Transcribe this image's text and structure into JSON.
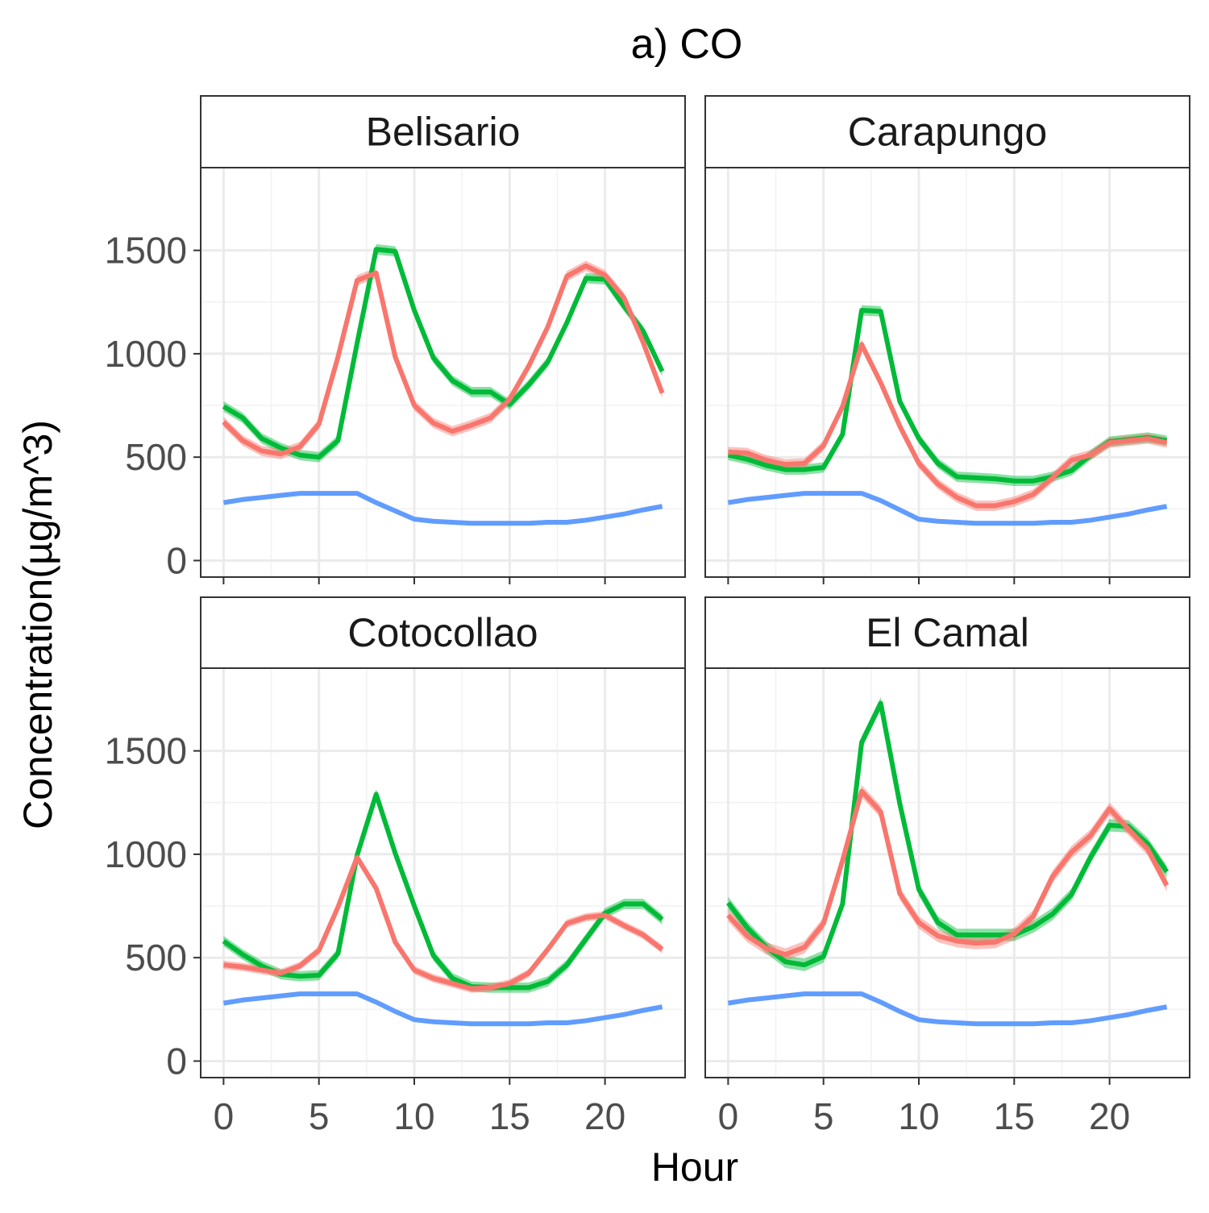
{
  "chart_data": {
    "type": "line",
    "title": "a) CO",
    "xlabel": "Hour",
    "ylabel": "Concentration(µg/m^3)",
    "xlim": [
      -1.2,
      24.2
    ],
    "ylim": [
      -80,
      1900
    ],
    "x_ticks": [
      0,
      5,
      10,
      15,
      20
    ],
    "y_ticks": [
      0,
      500,
      1000,
      1500
    ],
    "grid": true,
    "legend": "none",
    "colors": {
      "red": "#F8766D",
      "green": "#00BA38",
      "blue": "#619CFF"
    },
    "panels": [
      {
        "title": "Belisario",
        "series": [
          {
            "color": "#00BA38",
            "band": 25,
            "x": [
              0,
              1,
              2,
              3,
              4,
              5,
              6,
              7,
              8,
              9,
              10,
              11,
              12,
              13,
              14,
              15,
              16,
              17,
              18,
              19,
              20,
              21,
              22,
              23
            ],
            "y": [
              745,
              690,
              590,
              545,
              510,
              500,
              580,
              1050,
              1505,
              1495,
              1210,
              980,
              870,
              815,
              815,
              755,
              850,
              960,
              1150,
              1365,
              1360,
              1230,
              1110,
              915
            ]
          },
          {
            "color": "#F8766D",
            "band": 25,
            "x": [
              0,
              1,
              2,
              3,
              4,
              5,
              6,
              7,
              8,
              9,
              10,
              11,
              12,
              13,
              14,
              15,
              16,
              17,
              18,
              19,
              20,
              21,
              22,
              23
            ],
            "y": [
              670,
              580,
              530,
              515,
              550,
              660,
              985,
              1355,
              1390,
              985,
              750,
              665,
              625,
              655,
              690,
              780,
              940,
              1130,
              1375,
              1425,
              1380,
              1270,
              1055,
              810
            ]
          },
          {
            "color": "#619CFF",
            "band": 0,
            "x": [
              0,
              1,
              2,
              3,
              4,
              5,
              6,
              7,
              8,
              9,
              10,
              11,
              12,
              13,
              14,
              15,
              16,
              17,
              18,
              19,
              20,
              21,
              22,
              23
            ],
            "y": [
              280,
              295,
              305,
              315,
              325,
              325,
              325,
              325,
              280,
              240,
              200,
              190,
              185,
              180,
              180,
              180,
              180,
              185,
              185,
              195,
              210,
              225,
              245,
              262
            ]
          }
        ]
      },
      {
        "title": "Carapungo",
        "series": [
          {
            "color": "#00BA38",
            "band": 25,
            "x": [
              0,
              1,
              2,
              3,
              4,
              5,
              6,
              7,
              8,
              9,
              10,
              11,
              12,
              13,
              14,
              15,
              16,
              17,
              18,
              19,
              20,
              21,
              22,
              23
            ],
            "y": [
              510,
              490,
              460,
              440,
              440,
              450,
              610,
              1210,
              1205,
              770,
              590,
              470,
              405,
              400,
              395,
              385,
              385,
              405,
              435,
              510,
              575,
              585,
              595,
              580
            ]
          },
          {
            "color": "#F8766D",
            "band": 25,
            "x": [
              0,
              1,
              2,
              3,
              4,
              5,
              6,
              7,
              8,
              9,
              10,
              11,
              12,
              13,
              14,
              15,
              16,
              17,
              18,
              19,
              20,
              21,
              22,
              23
            ],
            "y": [
              525,
              520,
              485,
              465,
              470,
              555,
              745,
              1045,
              860,
              650,
              470,
              370,
              305,
              265,
              265,
              285,
              320,
              400,
              485,
              510,
              570,
              580,
              590,
              570
            ]
          },
          {
            "color": "#619CFF",
            "band": 0,
            "x": [
              0,
              1,
              2,
              3,
              4,
              5,
              6,
              7,
              8,
              9,
              10,
              11,
              12,
              13,
              14,
              15,
              16,
              17,
              18,
              19,
              20,
              21,
              22,
              23
            ],
            "y": [
              280,
              295,
              305,
              315,
              325,
              325,
              325,
              325,
              290,
              245,
              200,
              190,
              185,
              180,
              180,
              180,
              180,
              185,
              185,
              195,
              210,
              225,
              245,
              262
            ]
          }
        ]
      },
      {
        "title": "Cotocollao",
        "series": [
          {
            "color": "#00BA38",
            "band": 25,
            "x": [
              0,
              1,
              2,
              3,
              4,
              5,
              6,
              7,
              8,
              9,
              10,
              11,
              12,
              13,
              14,
              15,
              16,
              17,
              18,
              19,
              20,
              21,
              22,
              23
            ],
            "y": [
              580,
              515,
              460,
              420,
              410,
              415,
              520,
              995,
              1290,
              1005,
              750,
              510,
              400,
              360,
              355,
              355,
              355,
              385,
              465,
              590,
              715,
              760,
              760,
              685
            ]
          },
          {
            "color": "#F8766D",
            "band": 20,
            "x": [
              0,
              1,
              2,
              3,
              4,
              5,
              6,
              7,
              8,
              9,
              10,
              11,
              12,
              13,
              14,
              15,
              16,
              17,
              18,
              19,
              20,
              21,
              22,
              23
            ],
            "y": [
              465,
              455,
              440,
              425,
              460,
              535,
              745,
              985,
              835,
              575,
              440,
              400,
              375,
              350,
              355,
              375,
              425,
              540,
              665,
              695,
              705,
              655,
              610,
              540
            ]
          },
          {
            "color": "#619CFF",
            "band": 0,
            "x": [
              0,
              1,
              2,
              3,
              4,
              5,
              6,
              7,
              8,
              9,
              10,
              11,
              12,
              13,
              14,
              15,
              16,
              17,
              18,
              19,
              20,
              21,
              22,
              23
            ],
            "y": [
              280,
              295,
              305,
              315,
              325,
              325,
              325,
              325,
              285,
              240,
              200,
              190,
              185,
              180,
              180,
              180,
              180,
              185,
              185,
              195,
              210,
              225,
              245,
              262
            ]
          }
        ]
      },
      {
        "title": "El Camal",
        "series": [
          {
            "color": "#00BA38",
            "band": 30,
            "x": [
              0,
              1,
              2,
              3,
              4,
              5,
              6,
              7,
              8,
              9,
              10,
              11,
              12,
              13,
              14,
              15,
              16,
              17,
              18,
              19,
              20,
              21,
              22,
              23
            ],
            "y": [
              765,
              645,
              550,
              480,
              465,
              505,
              760,
              1540,
              1730,
              1245,
              830,
              670,
              610,
              610,
              610,
              610,
              650,
              710,
              805,
              985,
              1140,
              1135,
              1050,
              915
            ]
          },
          {
            "color": "#F8766D",
            "band": 30,
            "x": [
              0,
              1,
              2,
              3,
              4,
              5,
              6,
              7,
              8,
              9,
              10,
              11,
              12,
              13,
              14,
              15,
              16,
              17,
              18,
              19,
              20,
              21,
              22,
              23
            ],
            "y": [
              705,
              605,
              545,
              515,
              550,
              665,
              970,
              1305,
              1205,
              810,
              670,
              605,
              580,
              570,
              575,
              615,
              700,
              890,
              1010,
              1090,
              1220,
              1120,
              1025,
              850
            ]
          },
          {
            "color": "#619CFF",
            "band": 0,
            "x": [
              0,
              1,
              2,
              3,
              4,
              5,
              6,
              7,
              8,
              9,
              10,
              11,
              12,
              13,
              14,
              15,
              16,
              17,
              18,
              19,
              20,
              21,
              22,
              23
            ],
            "y": [
              280,
              295,
              305,
              315,
              325,
              325,
              325,
              325,
              285,
              240,
              200,
              190,
              185,
              180,
              180,
              180,
              180,
              185,
              185,
              195,
              210,
              225,
              245,
              262
            ]
          }
        ]
      }
    ]
  }
}
